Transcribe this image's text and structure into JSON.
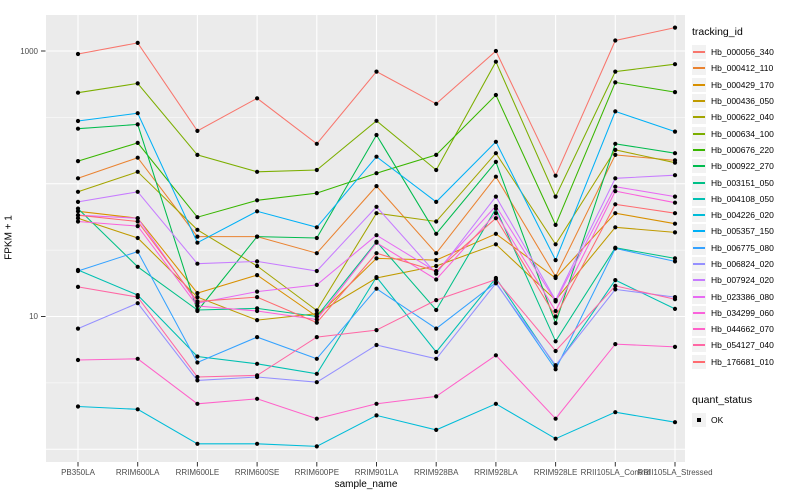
{
  "y_axis": {
    "title": "FPKM + 1",
    "ticks": [
      {
        "label": "1000",
        "value": 1000
      },
      {
        "label": "10",
        "value": 10
      }
    ]
  },
  "x_axis": {
    "title": "sample_name"
  },
  "legend": {
    "tracking_title": "tracking_id",
    "quant_title": "quant_status",
    "quant_ok_label": "OK"
  },
  "colors": {
    "panel_background": "#EBEBEB",
    "gridline": "#FFFFFF",
    "point": "#000000",
    "tick_mark": "#333333",
    "tick_text": "#4D4D4D"
  },
  "chart_data": {
    "type": "line",
    "title": "",
    "xlabel": "sample_name",
    "ylabel": "FPKM + 1",
    "y_scale": "log10",
    "ylim": [
      0.85,
      1900
    ],
    "y_tick_labels": [
      "1000",
      "10"
    ],
    "grid": true,
    "legend_position": "right",
    "quant_status": "OK",
    "x_categories": [
      "PB350LA",
      "RRIM600LA",
      "RRIM600LE",
      "RRIM600SE",
      "RRIM600PE",
      "RRIM901LA",
      "RRIM928BA",
      "RRIM928LA",
      "RRIM928LE",
      "RRII105LA_Control",
      "RRII105LA_Stressed"
    ],
    "series": [
      {
        "name": "Hb_000056_340",
        "color": "#F8766D",
        "values": [
          950,
          1150,
          250,
          440,
          200,
          700,
          400,
          1000,
          115,
          1200,
          1500
        ]
      },
      {
        "name": "Hb_000412_110",
        "color": "#EA8331",
        "values": [
          110,
          157,
          40,
          40,
          30,
          96,
          30,
          113,
          20,
          165,
          150
        ]
      },
      {
        "name": "Hb_000429_170",
        "color": "#D89000",
        "values": [
          62,
          55,
          15,
          20.5,
          10,
          27.4,
          26.6,
          42,
          19.5,
          60,
          50
        ]
      },
      {
        "name": "Hb_000436_050",
        "color": "#C09B00",
        "values": [
          55,
          39,
          14,
          9.4,
          10.5,
          19.5,
          24,
          35,
          13.3,
          47,
          43
        ]
      },
      {
        "name": "Hb_000622_040",
        "color": "#A3A500",
        "values": [
          87,
          123,
          45,
          24,
          11.1,
          60,
          52,
          170,
          35,
          180,
          144
        ]
      },
      {
        "name": "Hb_000634_100",
        "color": "#7CAE00",
        "values": [
          485,
          570,
          165,
          123,
          127,
          298,
          127,
          830,
          80,
          700,
          795
        ]
      },
      {
        "name": "Hb_000676_220",
        "color": "#39B600",
        "values": [
          148,
          203,
          56,
          75,
          85,
          120,
          165,
          466,
          49,
          580,
          490
        ]
      },
      {
        "name": "Hb_000922_270",
        "color": "#00BB4E",
        "values": [
          260,
          280,
          11,
          40,
          39,
          233,
          42,
          146,
          8.9,
          200,
          170
        ]
      },
      {
        "name": "Hb_003151_050",
        "color": "#00C087",
        "values": [
          65,
          23.7,
          11.2,
          11.5,
          10,
          36.6,
          11.2,
          65,
          6.5,
          33,
          27.4
        ]
      },
      {
        "name": "Hb_004108_050",
        "color": "#00C0B2",
        "values": [
          22.4,
          14.5,
          5,
          4.4,
          3.7,
          19.8,
          5.4,
          19.5,
          4.2,
          18.8,
          11.4
        ]
      },
      {
        "name": "Hb_004226_020",
        "color": "#00BCD8",
        "values": [
          2.1,
          2.0,
          1.1,
          1.1,
          1.05,
          1.8,
          1.4,
          2.2,
          1.2,
          1.9,
          1.6
        ]
      },
      {
        "name": "Hb_005357_150",
        "color": "#00B0F6",
        "values": [
          297,
          340,
          36,
          62,
          47,
          160,
          73,
          207,
          26.6,
          351,
          247
        ]
      },
      {
        "name": "Hb_006775_080",
        "color": "#35A2FF",
        "values": [
          22,
          30.8,
          4.5,
          7.0,
          4.8,
          16.2,
          8.1,
          18,
          4.0,
          32.6,
          26
        ]
      },
      {
        "name": "Hb_006824_020",
        "color": "#9590FF",
        "values": [
          8.1,
          12.6,
          3.3,
          3.5,
          3.2,
          6.1,
          4.8,
          17.8,
          4.3,
          16,
          14
        ]
      },
      {
        "name": "Hb_007924_020",
        "color": "#C77CFF",
        "values": [
          73,
          87,
          25,
          26,
          22,
          67,
          21,
          80,
          13.3,
          110,
          116
        ]
      },
      {
        "name": "Hb_023386_080",
        "color": "#E76BF3",
        "values": [
          58,
          55,
          12.6,
          15.4,
          17.3,
          41,
          21.8,
          68,
          13,
          95,
          80
        ]
      },
      {
        "name": "Hb_034299_060",
        "color": "#FA62DB",
        "values": [
          52,
          48,
          12,
          11,
          9.5,
          36,
          19,
          60,
          11,
          88,
          72
        ]
      },
      {
        "name": "Hb_044662_070",
        "color": "#FF61C9",
        "values": [
          4.7,
          4.8,
          2.2,
          2.4,
          1.7,
          2.2,
          2.5,
          5.1,
          1.7,
          6.2,
          5.9
        ]
      },
      {
        "name": "Hb_054127_040",
        "color": "#FF67A4",
        "values": [
          16.7,
          14,
          3.5,
          3.6,
          7.0,
          7.9,
          13.3,
          19,
          5.5,
          17,
          13.5
        ]
      },
      {
        "name": "Hb_176681_010",
        "color": "#FF6B70",
        "values": [
          58,
          52,
          13,
          14,
          9,
          30,
          22,
          55,
          10,
          70,
          60
        ]
      }
    ]
  }
}
